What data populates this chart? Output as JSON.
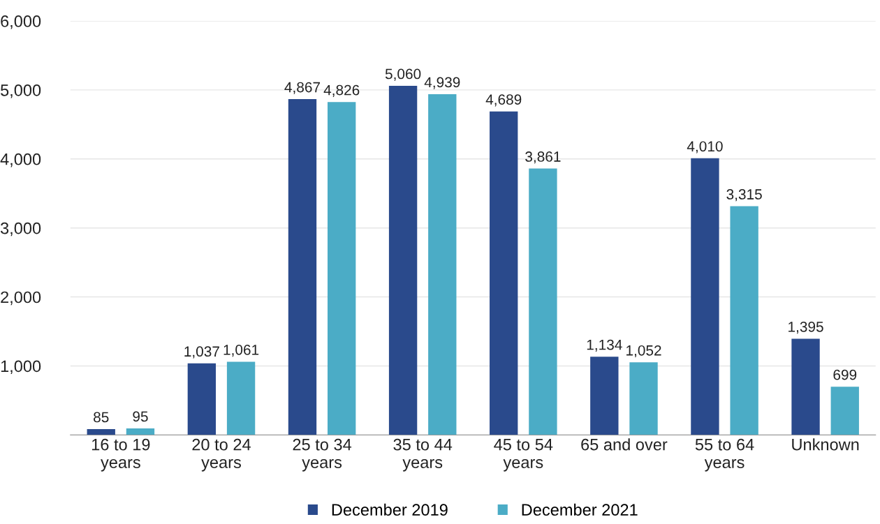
{
  "chart_data": {
    "type": "bar",
    "categories": [
      "16 to 19\nyears",
      "20 to 24\nyears",
      "25 to 34\nyears",
      "35 to 44\nyears",
      "45 to 54\nyears",
      "65 and over",
      "55 to 64\nyears",
      "Unknown"
    ],
    "series": [
      {
        "name": "December 2019",
        "color": "#2a4a8c",
        "values": [
          85,
          1037,
          4867,
          5060,
          4689,
          1134,
          4010,
          1395
        ],
        "value_labels": [
          "85",
          "1,037",
          "4,867",
          "5,060",
          "4,689",
          "1,134",
          "4,010",
          "1,395"
        ]
      },
      {
        "name": "December 2021",
        "color": "#4bacc6",
        "values": [
          95,
          1061,
          4826,
          4939,
          3861,
          1052,
          3315,
          699
        ],
        "value_labels": [
          "95",
          "1,061",
          "4,826",
          "4,939",
          "3,861",
          "1,052",
          "3,315",
          "699"
        ]
      }
    ],
    "ylim": [
      0,
      6000
    ],
    "yticks": [
      {
        "value": 1000,
        "label": "1,000"
      },
      {
        "value": 2000,
        "label": "2,000"
      },
      {
        "value": 3000,
        "label": "3,000"
      },
      {
        "value": 4000,
        "label": "4,000"
      },
      {
        "value": 5000,
        "label": "5,000"
      },
      {
        "value": 6000,
        "label": "6,000"
      }
    ],
    "grid": "y",
    "legend": "bottom"
  }
}
